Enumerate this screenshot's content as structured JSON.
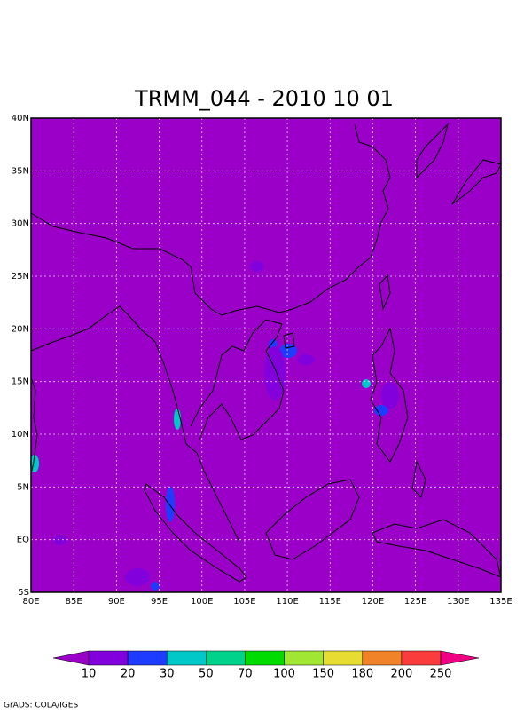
{
  "title": "TRMM_044 - 2010 10 01",
  "map": {
    "xticks": [
      "80E",
      "85E",
      "90E",
      "95E",
      "100E",
      "105E",
      "110E",
      "115E",
      "120E",
      "125E",
      "130E",
      "135E"
    ],
    "yticks": [
      "40N",
      "35N",
      "30N",
      "25N",
      "20N",
      "15N",
      "10N",
      "5N",
      "EQ",
      "5S"
    ]
  },
  "colorbar": {
    "levels": [
      10,
      20,
      30,
      50,
      70,
      100,
      150,
      180,
      200,
      250
    ],
    "colors": [
      "#9b00c8",
      "#8200dc",
      "#1e3cff",
      "#00c8c8",
      "#00d28c",
      "#00dc00",
      "#a0e632",
      "#e6dc32",
      "#f08228",
      "#fa3c3c",
      "#f00082"
    ]
  },
  "footer": "GrADS: COLA/IGES"
}
